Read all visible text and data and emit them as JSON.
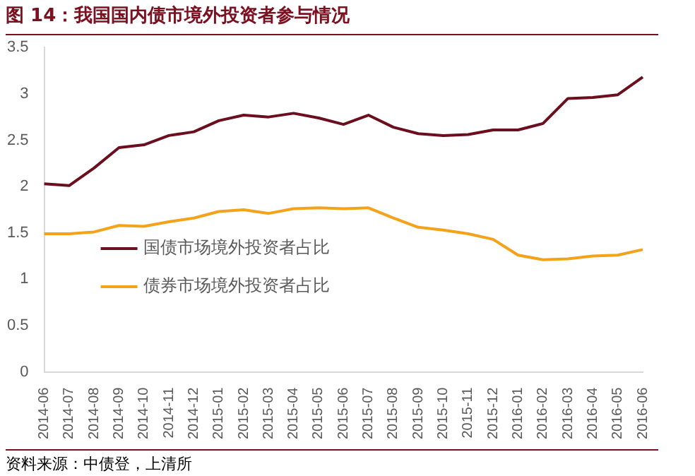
{
  "chart_data": {
    "type": "line",
    "title": "图 14：我国国内债市境外投资者参与情况",
    "categories": [
      "2014-06",
      "2014-07",
      "2014-08",
      "2014-09",
      "2014-10",
      "2014-11",
      "2014-12",
      "2015-01",
      "2015-02",
      "2015-03",
      "2015-04",
      "2015-05",
      "2015-06",
      "2015-07",
      "2015-08",
      "2015-09",
      "2015-10",
      "2015-11",
      "2015-12",
      "2016-01",
      "2016-02",
      "2016-03",
      "2016-04",
      "2016-05",
      "2016-06"
    ],
    "series": [
      {
        "name": "国债市场境外投资者占比",
        "color": "#6b0f1e",
        "values": [
          2.03,
          2.01,
          2.2,
          2.42,
          2.45,
          2.55,
          2.59,
          2.71,
          2.77,
          2.75,
          2.79,
          2.74,
          2.67,
          2.77,
          2.64,
          2.57,
          2.55,
          2.56,
          2.61,
          2.61,
          2.68,
          2.95,
          2.96,
          2.99,
          3.18
        ]
      },
      {
        "name": "债券市场境外投资者占比",
        "color": "#f5a21b",
        "values": [
          1.49,
          1.49,
          1.51,
          1.58,
          1.57,
          1.62,
          1.66,
          1.73,
          1.75,
          1.71,
          1.76,
          1.77,
          1.76,
          1.77,
          1.66,
          1.56,
          1.53,
          1.49,
          1.43,
          1.26,
          1.21,
          1.22,
          1.25,
          1.26,
          1.32
        ]
      }
    ],
    "ylim": [
      0,
      3.5
    ],
    "yticks": [
      0,
      0.5,
      1,
      1.5,
      2,
      2.5,
      3,
      3.5
    ],
    "grid": false,
    "legend": "left",
    "marker": "none",
    "line_style": "solid",
    "annotations": [
      "资料来源：中债登，上清所"
    ]
  }
}
